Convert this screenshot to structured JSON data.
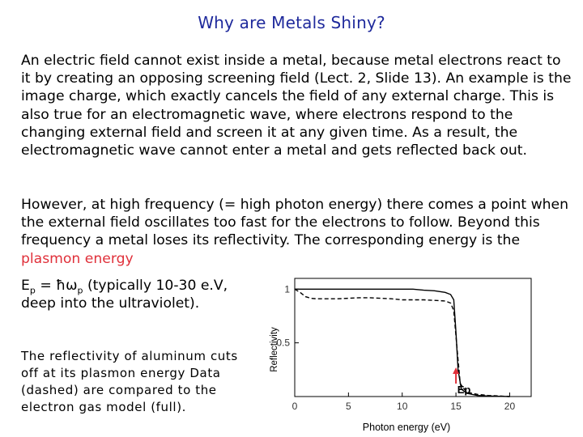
{
  "title": "Why are Metals Shiny?",
  "paragraph1": "An electric field cannot exist inside a metal, because metal electrons react to it by creating an opposing screening field (Lect. 2, Slide 13). An example is the image charge, which exactly cancels the field of any external charge. This is also true for an electromagnetic wave, where electrons respond to the changing external field and screen it at any given time. As a result, the electromagnetic wave cannot enter a metal and gets reflected back out.",
  "paragraph2_main": "However, at high frequency (= high photon energy) there comes a point when the external field oscillates too fast for the electrons to follow. Beyond this frequency a metal loses its reflectivity. The corresponding energy is the ",
  "plasmon_label": "plasmon energy",
  "ep_symbol": "E",
  "ep_sub": "p",
  "ep_equals": " = ħω",
  "ep_sub2": "p",
  "ep_tail": " (typically 10-30 e.V,",
  "deep_text": "deep into the ultraviolet).",
  "caption": "The reflectivity of aluminum cuts off at its plasmon energy Data (dashed) are compared to the electron gas model (full).",
  "ep_marker": "Ep",
  "colors": {
    "title": "#1f2a9c",
    "plasmon": "#e0303a"
  },
  "chart_data": {
    "type": "line",
    "xlabel": "Photon energy (eV)",
    "ylabel": "Reflectivity",
    "xlim": [
      0,
      22
    ],
    "ylim": [
      0,
      1.1
    ],
    "xticks": [
      0,
      5,
      10,
      15,
      20
    ],
    "yticks": [
      0.5,
      1
    ],
    "ytick_labels": [
      "0.5",
      "1"
    ],
    "series": [
      {
        "style": "solid",
        "x": [
          0,
          1,
          2,
          3,
          4,
          5,
          6,
          7,
          8,
          9,
          10,
          11,
          12,
          13,
          14,
          14.5,
          14.8,
          15.0,
          15.2,
          15.5,
          16,
          17,
          18,
          19,
          20
        ],
        "y": [
          1.0,
          1.0,
          1.0,
          1.0,
          1.0,
          1.0,
          1.0,
          1.0,
          1.0,
          1.0,
          1.0,
          1.0,
          0.99,
          0.985,
          0.97,
          0.95,
          0.9,
          0.6,
          0.25,
          0.07,
          0.03,
          0.01,
          0.005,
          0.002,
          0.0
        ]
      },
      {
        "style": "dashed",
        "x": [
          0,
          0.5,
          1,
          1.5,
          2,
          3,
          4,
          5,
          6,
          7,
          8,
          9,
          10,
          11,
          12,
          13,
          14,
          14.5,
          14.8,
          15.1,
          15.4,
          16,
          17,
          18,
          19,
          20
        ],
        "y": [
          1.0,
          0.97,
          0.93,
          0.915,
          0.91,
          0.91,
          0.91,
          0.915,
          0.92,
          0.92,
          0.915,
          0.91,
          0.9,
          0.9,
          0.9,
          0.895,
          0.89,
          0.87,
          0.8,
          0.45,
          0.12,
          0.04,
          0.02,
          0.01,
          0.005,
          0.0
        ]
      }
    ]
  }
}
